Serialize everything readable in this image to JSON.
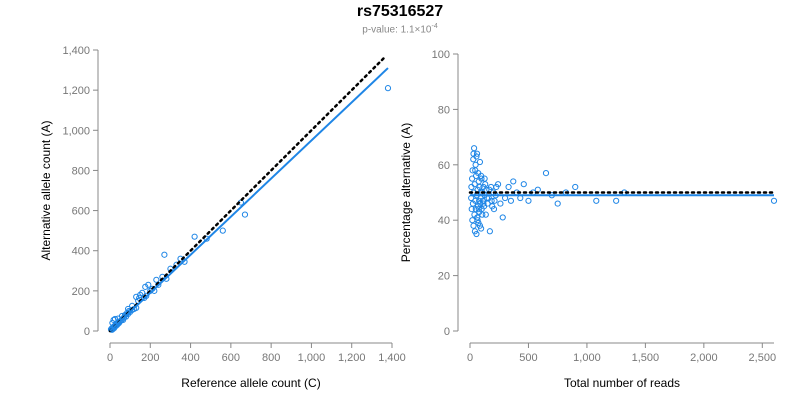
{
  "header": {
    "title": "rs75316527",
    "pvalue_label": "p-value: 1.1",
    "pvalue_times": "×",
    "pvalue_base": "10",
    "pvalue_exp": "-4"
  },
  "colors": {
    "points": "#1f86e6",
    "fit": "#1f86e6",
    "expected": "#000000",
    "axis": "#888888"
  },
  "chart_data": [
    {
      "type": "scatter",
      "xlabel": "Reference allele count (C)",
      "ylabel": "Alternative allele count (A)",
      "xlim": [
        0,
        1400
      ],
      "ylim": [
        0,
        1400
      ],
      "xticks": [
        0,
        200,
        400,
        600,
        800,
        1000,
        1200,
        1400
      ],
      "yticks": [
        0,
        200,
        400,
        600,
        800,
        1000,
        1200,
        1400
      ],
      "xtick_labels": [
        "0",
        "200",
        "400",
        "600",
        "800",
        "1,000",
        "1,200",
        "1,400"
      ],
      "ytick_labels": [
        "0",
        "200",
        "400",
        "600",
        "800",
        "1,000",
        "1,200",
        "1,400"
      ],
      "grid": false,
      "expected_line": {
        "x": [
          0,
          1370
        ],
        "y": [
          0,
          1370
        ]
      },
      "fit_line": {
        "x": [
          0,
          1380
        ],
        "y": [
          0,
          1310
        ]
      },
      "points": [
        [
          5,
          8
        ],
        [
          8,
          12
        ],
        [
          10,
          6
        ],
        [
          12,
          15
        ],
        [
          14,
          18
        ],
        [
          15,
          10
        ],
        [
          18,
          20
        ],
        [
          20,
          14
        ],
        [
          22,
          25
        ],
        [
          25,
          22
        ],
        [
          28,
          30
        ],
        [
          30,
          26
        ],
        [
          32,
          35
        ],
        [
          35,
          30
        ],
        [
          38,
          42
        ],
        [
          40,
          36
        ],
        [
          45,
          40
        ],
        [
          50,
          48
        ],
        [
          55,
          52
        ],
        [
          60,
          58
        ],
        [
          65,
          55
        ],
        [
          70,
          68
        ],
        [
          75,
          80
        ],
        [
          80,
          72
        ],
        [
          85,
          90
        ],
        [
          90,
          85
        ],
        [
          95,
          100
        ],
        [
          100,
          95
        ],
        [
          110,
          105
        ],
        [
          120,
          110
        ],
        [
          130,
          115
        ],
        [
          140,
          150
        ],
        [
          150,
          180
        ],
        [
          160,
          190
        ],
        [
          170,
          165
        ],
        [
          180,
          175
        ],
        [
          190,
          230
        ],
        [
          200,
          200
        ],
        [
          210,
          210
        ],
        [
          220,
          200
        ],
        [
          240,
          230
        ],
        [
          260,
          270
        ],
        [
          270,
          380
        ],
        [
          280,
          260
        ],
        [
          300,
          310
        ],
        [
          330,
          330
        ],
        [
          350,
          360
        ],
        [
          370,
          345
        ],
        [
          420,
          470
        ],
        [
          480,
          460
        ],
        [
          560,
          500
        ],
        [
          650,
          640
        ],
        [
          670,
          580
        ],
        [
          1380,
          1210
        ],
        [
          12,
          40
        ],
        [
          18,
          55
        ],
        [
          25,
          60
        ],
        [
          40,
          62
        ],
        [
          60,
          75
        ],
        [
          90,
          110
        ],
        [
          110,
          125
        ],
        [
          130,
          170
        ],
        [
          145,
          165
        ],
        [
          175,
          220
        ],
        [
          230,
          255
        ]
      ]
    },
    {
      "type": "scatter",
      "xlabel": "Total number of reads",
      "ylabel": "Percentage alternative (A)",
      "xlim": [
        0,
        2600
      ],
      "ylim": [
        0,
        100
      ],
      "xticks": [
        0,
        500,
        1000,
        1500,
        2000,
        2500
      ],
      "yticks": [
        0,
        20,
        40,
        60,
        80,
        100
      ],
      "xtick_labels": [
        "0",
        "500",
        "1,000",
        "1,500",
        "2,000",
        "2,500"
      ],
      "ytick_labels": [
        "0",
        "20",
        "40",
        "60",
        "80",
        "100"
      ],
      "grid": false,
      "expected_line": {
        "x": [
          0,
          2600
        ],
        "y": [
          50,
          50
        ]
      },
      "fit_line": {
        "x": [
          0,
          2600
        ],
        "y": [
          49,
          49
        ]
      },
      "points": [
        [
          10,
          48
        ],
        [
          12,
          52
        ],
        [
          15,
          44
        ],
        [
          18,
          55
        ],
        [
          20,
          40
        ],
        [
          22,
          58
        ],
        [
          25,
          46
        ],
        [
          28,
          62
        ],
        [
          30,
          38
        ],
        [
          32,
          50
        ],
        [
          35,
          66
        ],
        [
          38,
          42
        ],
        [
          40,
          53
        ],
        [
          42,
          36
        ],
        [
          45,
          47
        ],
        [
          48,
          60
        ],
        [
          50,
          44
        ],
        [
          52,
          56
        ],
        [
          55,
          35
        ],
        [
          58,
          49
        ],
        [
          60,
          64
        ],
        [
          62,
          41
        ],
        [
          65,
          51
        ],
        [
          68,
          45
        ],
        [
          70,
          57
        ],
        [
          72,
          39
        ],
        [
          75,
          54
        ],
        [
          78,
          47
        ],
        [
          80,
          43
        ],
        [
          82,
          52
        ],
        [
          85,
          61
        ],
        [
          88,
          46
        ],
        [
          90,
          50
        ],
        [
          92,
          48
        ],
        [
          95,
          37
        ],
        [
          98,
          55
        ],
        [
          100,
          44
        ],
        [
          105,
          50
        ],
        [
          110,
          47
        ],
        [
          115,
          52
        ],
        [
          120,
          45
        ],
        [
          125,
          49
        ],
        [
          130,
          53
        ],
        [
          135,
          42
        ],
        [
          140,
          51
        ],
        [
          150,
          46
        ],
        [
          160,
          48
        ],
        [
          170,
          36
        ],
        [
          180,
          52
        ],
        [
          190,
          45
        ],
        [
          200,
          50
        ],
        [
          210,
          47
        ],
        [
          220,
          49
        ],
        [
          240,
          53
        ],
        [
          260,
          46
        ],
        [
          280,
          41
        ],
        [
          300,
          48
        ],
        [
          330,
          52
        ],
        [
          350,
          47
        ],
        [
          370,
          54
        ],
        [
          400,
          50
        ],
        [
          430,
          48
        ],
        [
          460,
          53
        ],
        [
          500,
          47
        ],
        [
          540,
          50
        ],
        [
          580,
          51
        ],
        [
          650,
          57
        ],
        [
          700,
          49
        ],
        [
          750,
          46
        ],
        [
          820,
          50
        ],
        [
          900,
          52
        ],
        [
          1080,
          47
        ],
        [
          1250,
          47
        ],
        [
          1320,
          50
        ],
        [
          2600,
          47
        ],
        [
          30,
          64
        ],
        [
          45,
          58
        ],
        [
          55,
          63
        ],
        [
          65,
          40
        ],
        [
          75,
          44
        ],
        [
          85,
          38
        ],
        [
          95,
          56
        ],
        [
          105,
          42
        ],
        [
          115,
          46
        ],
        [
          125,
          55
        ],
        [
          145,
          48
        ],
        [
          165,
          51
        ],
        [
          185,
          47
        ],
        [
          205,
          44
        ],
        [
          225,
          52
        ]
      ]
    }
  ]
}
